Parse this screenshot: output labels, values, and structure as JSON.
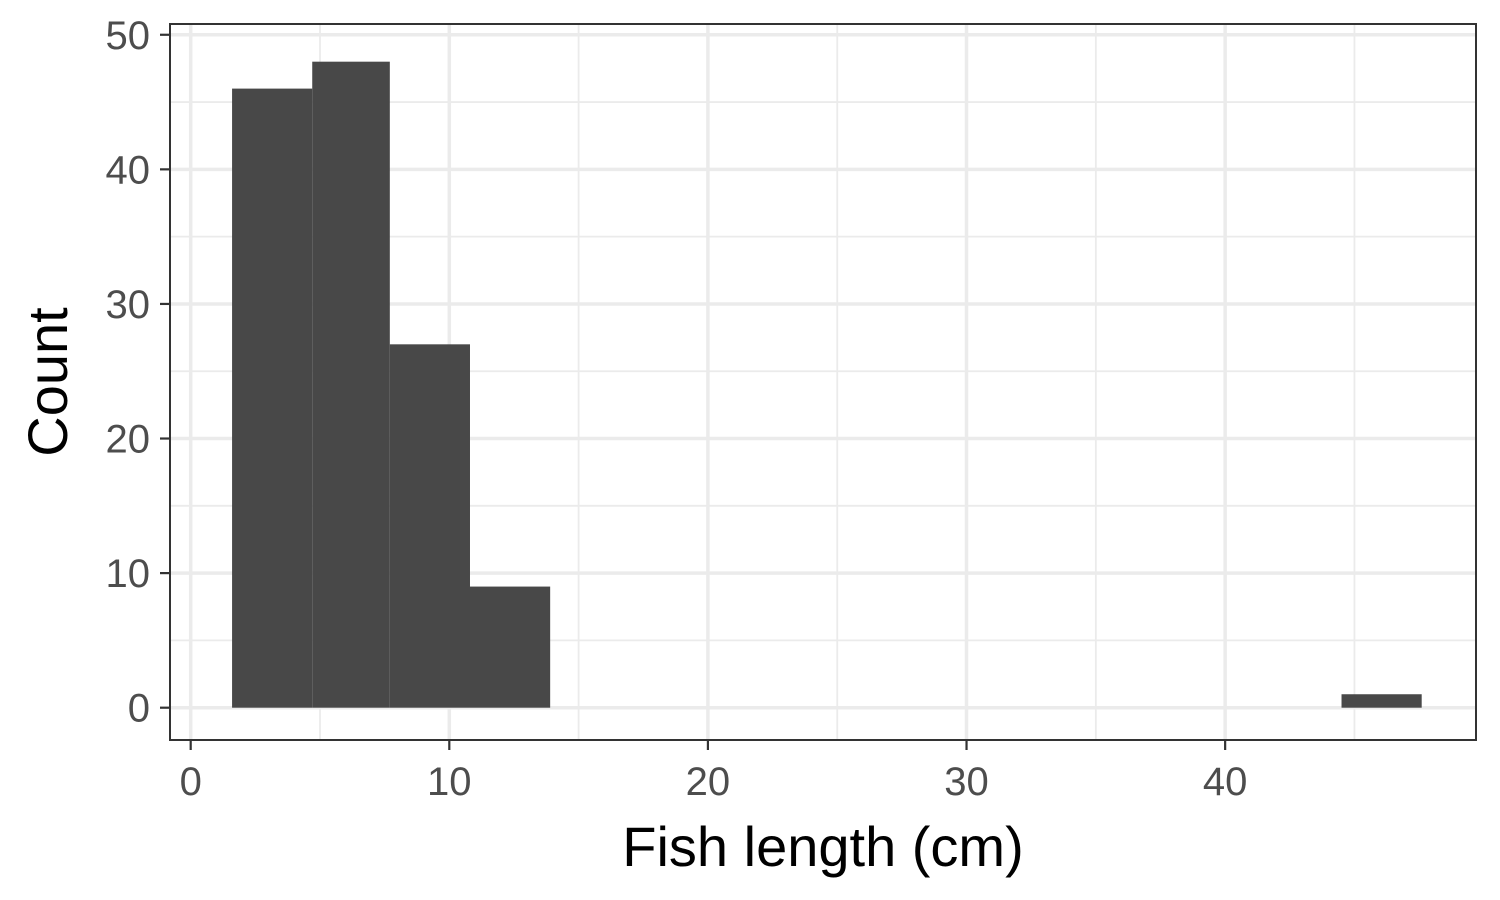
{
  "chart_data": {
    "type": "bar",
    "subtype": "histogram",
    "xlabel": "Fish length (cm)",
    "ylabel": "Count",
    "xlim": [
      -0.8,
      49.7
    ],
    "ylim": [
      -2.4,
      50.8
    ],
    "x_ticks": [
      0,
      10,
      20,
      30,
      40
    ],
    "y_ticks": [
      0,
      10,
      20,
      30,
      40,
      50
    ],
    "x_minor": [
      5,
      15,
      25,
      35,
      45
    ],
    "y_minor": [
      5,
      15,
      25,
      35,
      45
    ],
    "bins": [
      {
        "x0": 1.6,
        "x1": 4.7,
        "count": 46
      },
      {
        "x0": 4.7,
        "x1": 7.7,
        "count": 48
      },
      {
        "x0": 7.7,
        "x1": 10.8,
        "count": 27
      },
      {
        "x0": 10.8,
        "x1": 13.9,
        "count": 9
      },
      {
        "x0": 13.9,
        "x1": 16.9,
        "count": 0
      },
      {
        "x0": 16.9,
        "x1": 20.0,
        "count": 0
      },
      {
        "x0": 20.0,
        "x1": 23.1,
        "count": 0
      },
      {
        "x0": 23.1,
        "x1": 26.1,
        "count": 0
      },
      {
        "x0": 26.1,
        "x1": 29.2,
        "count": 0
      },
      {
        "x0": 29.2,
        "x1": 32.3,
        "count": 0
      },
      {
        "x0": 32.3,
        "x1": 35.3,
        "count": 0
      },
      {
        "x0": 35.3,
        "x1": 38.4,
        "count": 0
      },
      {
        "x0": 38.4,
        "x1": 41.5,
        "count": 0
      },
      {
        "x0": 41.5,
        "x1": 44.5,
        "count": 0
      },
      {
        "x0": 44.5,
        "x1": 47.6,
        "count": 1
      }
    ],
    "bar_color": "#484848",
    "grid": true,
    "legend": "none"
  }
}
